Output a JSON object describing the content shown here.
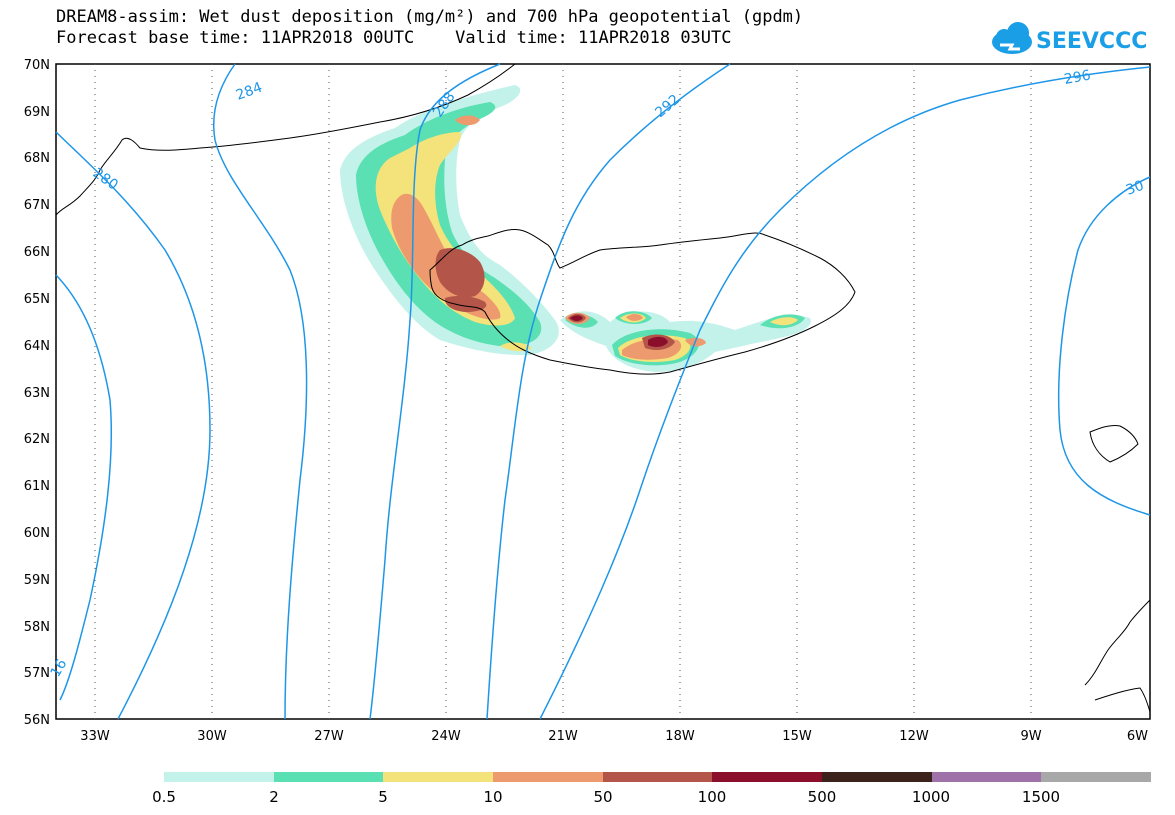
{
  "header": {
    "title": "DREAM8-assim: Wet dust deposition (mg/m²) and 700 hPa geopotential (gpdm)",
    "subtitle": "Forecast base time: 11APR2018 00UTC    Valid time: 11APR2018 03UTC"
  },
  "logo": {
    "text": "SEEVCCC",
    "icon": "cloud-icon",
    "color": "#1a9ee6"
  },
  "map": {
    "lon_labels": [
      "33W",
      "30W",
      "27W",
      "24W",
      "21W",
      "18W",
      "15W",
      "12W",
      "9W",
      "6W"
    ],
    "lat_labels": [
      "70N",
      "69N",
      "68N",
      "67N",
      "66N",
      "65N",
      "64N",
      "63N",
      "62N",
      "61N",
      "60N",
      "59N",
      "58N",
      "57N",
      "56N"
    ],
    "lon_range": [
      -34,
      -6
    ],
    "lat_range": [
      56,
      70
    ],
    "contour_color": "#1e96e8",
    "contour_labels": [
      "284",
      "280",
      "288",
      "292",
      "296",
      "30",
      "16"
    ]
  },
  "legend": {
    "colors": [
      "#c3f2ea",
      "#5ae0b2",
      "#f4e37a",
      "#ec9a6e",
      "#b35548",
      "#8b0f2b",
      "#3b231c",
      "#9e72a8",
      "#a8a8a8"
    ],
    "labels": [
      "0.5",
      "2",
      "5",
      "10",
      "50",
      "100",
      "500",
      "1000",
      "1500"
    ]
  }
}
